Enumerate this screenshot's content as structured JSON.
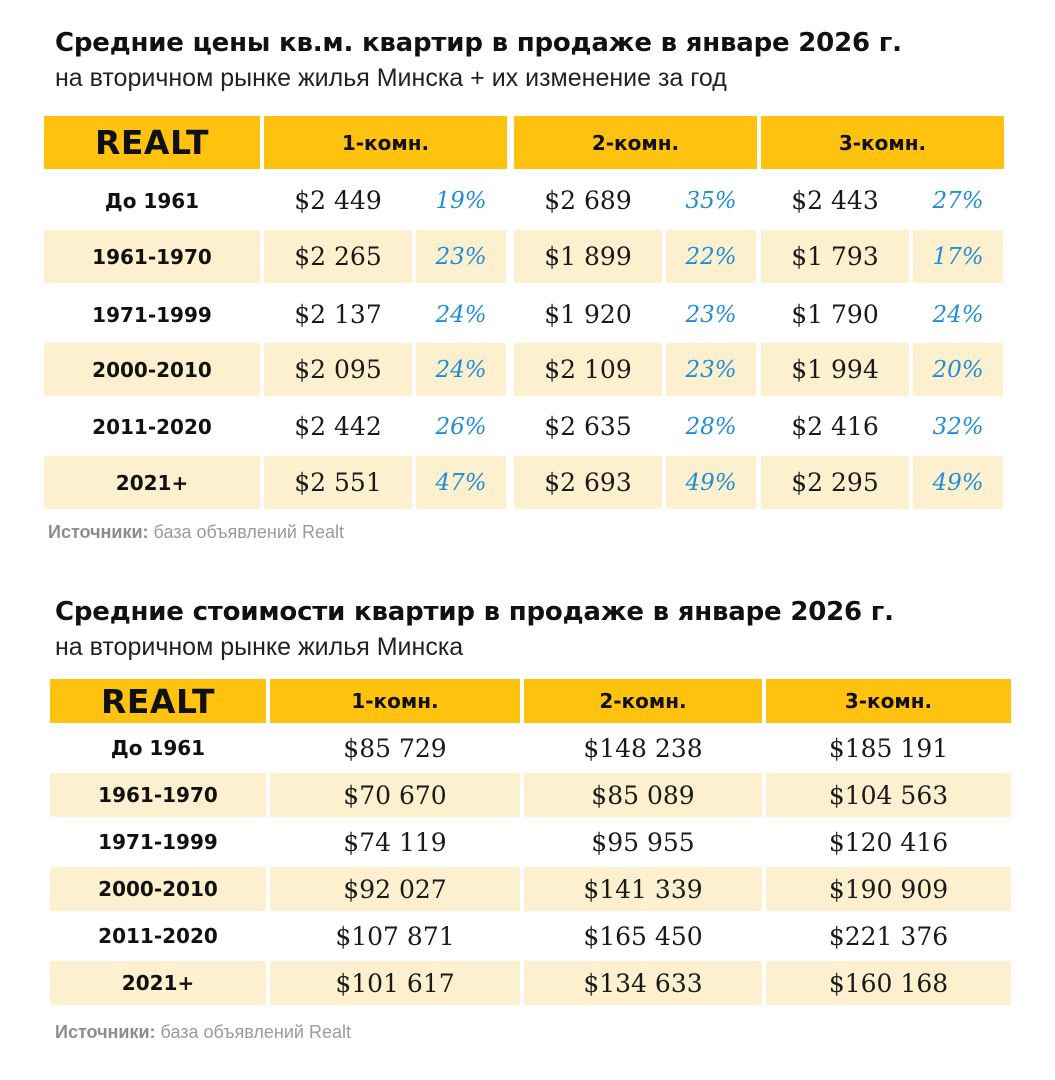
{
  "chart_data": [
    {
      "type": "table",
      "title": "Средние цены кв.м. квартир в продаже в январе 2026 г.",
      "subtitle": "на вторичном рынке жилья Минска + их изменение за год",
      "brand": "Realt",
      "columns": [
        "1-комн.",
        "2-комн.",
        "3-комн."
      ],
      "rows": [
        {
          "label": "До 1961",
          "values": [
            {
              "price": "$2 449",
              "change": "19%"
            },
            {
              "price": "$2 689",
              "change": "35%"
            },
            {
              "price": "$2 443",
              "change": "27%"
            }
          ]
        },
        {
          "label": "1961-1970",
          "values": [
            {
              "price": "$2 265",
              "change": "23%"
            },
            {
              "price": "$1 899",
              "change": "22%"
            },
            {
              "price": "$1 793",
              "change": "17%"
            }
          ]
        },
        {
          "label": "1971-1999",
          "values": [
            {
              "price": "$2 137",
              "change": "24%"
            },
            {
              "price": "$1 920",
              "change": "23%"
            },
            {
              "price": "$1 790",
              "change": "24%"
            }
          ]
        },
        {
          "label": "2000-2010",
          "values": [
            {
              "price": "$2 095",
              "change": "24%"
            },
            {
              "price": "$2 109",
              "change": "23%"
            },
            {
              "price": "$1 994",
              "change": "20%"
            }
          ]
        },
        {
          "label": "2011-2020",
          "values": [
            {
              "price": "$2 442",
              "change": "26%"
            },
            {
              "price": "$2 635",
              "change": "28%"
            },
            {
              "price": "$2 416",
              "change": "32%"
            }
          ]
        },
        {
          "label": "2021+",
          "values": [
            {
              "price": "$2 551",
              "change": "47%"
            },
            {
              "price": "$2 693",
              "change": "49%"
            },
            {
              "price": "$2 295",
              "change": "49%"
            }
          ]
        }
      ],
      "source_label": "Источники:",
      "source_text": "база объявлений Realt"
    },
    {
      "type": "table",
      "title": "Средние стоимости квартир в продаже в январе 2026 г.",
      "subtitle": "на вторичном рынке жилья Минска",
      "brand": "Realt",
      "columns": [
        "1-комн.",
        "2-комн.",
        "3-комн."
      ],
      "rows": [
        {
          "label": "До 1961",
          "values": [
            "$85 729",
            "$148 238",
            "$185 191"
          ]
        },
        {
          "label": "1961-1970",
          "values": [
            "$70 670",
            "$85 089",
            "$104 563"
          ]
        },
        {
          "label": "1971-1999",
          "values": [
            "$74 119",
            "$95 955",
            "$120 416"
          ]
        },
        {
          "label": "2000-2010",
          "values": [
            "$92 027",
            "$141 339",
            "$190 909"
          ]
        },
        {
          "label": "2011-2020",
          "values": [
            "$107 871",
            "$165 450",
            "$221 376"
          ]
        },
        {
          "label": "2021+",
          "values": [
            "$101 617",
            "$134 633",
            "$160 168"
          ]
        }
      ],
      "source_label": "Источники:",
      "source_text": "база объявлений Realt"
    }
  ],
  "colors": {
    "header_bg": "#ffc20e",
    "shaded_row_bg": "#fdf0cf",
    "change_text": "#1f8ed6",
    "source_text": "#9a9a9a"
  }
}
